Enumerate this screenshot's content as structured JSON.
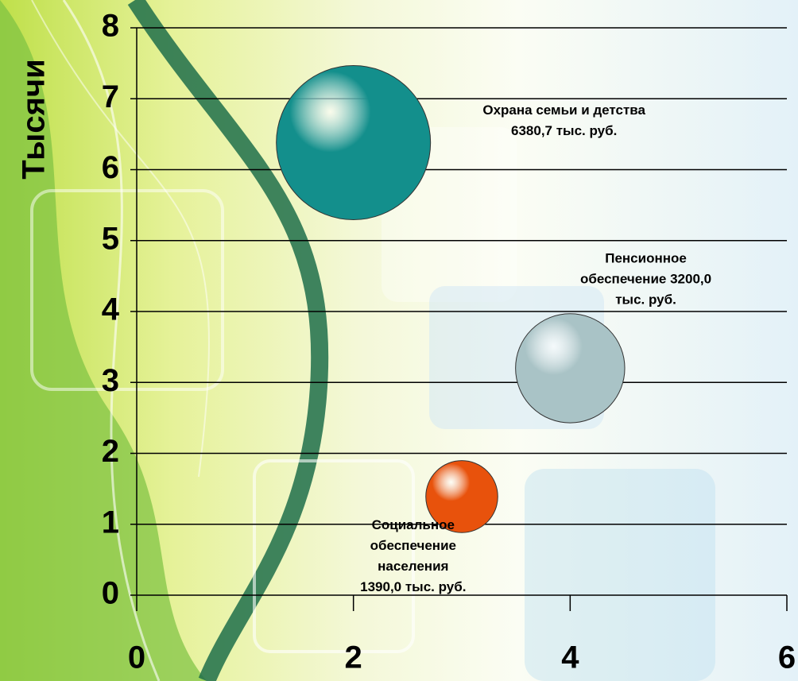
{
  "chart_data": {
    "type": "bubble",
    "y_label": "Тысячи",
    "xlim": [
      0,
      6
    ],
    "xticks": [
      0,
      2,
      4,
      6
    ],
    "ylim": [
      0,
      8
    ],
    "yticks": [
      0,
      1,
      2,
      3,
      4,
      5,
      6,
      7,
      8
    ],
    "grid": true,
    "series": [
      {
        "color": "#138f8c",
        "x": [
          2
        ],
        "y": [
          6.3807
        ],
        "size": [
          6380.7
        ],
        "labels": [
          [
            "Охрана семьи и детства",
            "6380,7 тыс. руб."
          ]
        ]
      },
      {
        "color": "#a9c3c6",
        "x": [
          4
        ],
        "y": [
          3.2
        ],
        "size": [
          3200.0
        ],
        "labels": [
          [
            "Пенсионное",
            "обеспечение 3200,0",
            "тыс. руб."
          ]
        ]
      },
      {
        "color": "#e8520c",
        "x": [
          3
        ],
        "y": [
          1.39
        ],
        "size": [
          1390.0
        ],
        "labels": [
          [
            "Социальное",
            "обеспечение",
            "населения",
            "1390,0 тыс. руб."
          ]
        ]
      }
    ]
  }
}
